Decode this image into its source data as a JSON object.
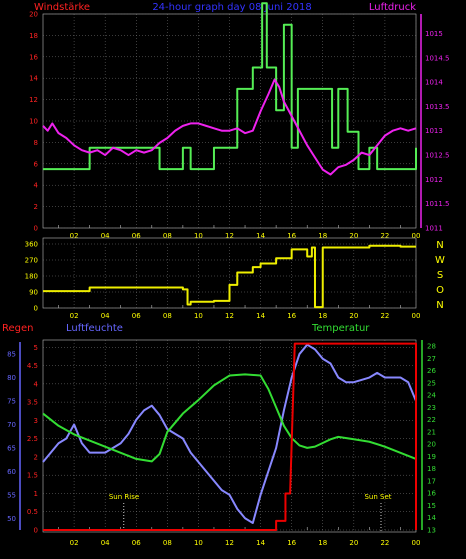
{
  "colors": {
    "background": "#000000",
    "grid": "#7a7a7a",
    "wind_speed": "#55ee55",
    "pressure": "#ee22ee",
    "wind_dir": "#eeee00",
    "humidity": "#8888ff",
    "temperature": "#33dd33",
    "rain": "#ee0000",
    "axis_red": "#ff2222",
    "axis_blue": "#6666ff",
    "axis_yellow": "#ffff00",
    "axis_magenta": "#ee22ee",
    "axis_green": "#33dd33",
    "title_blue": "#3333ff"
  },
  "header": {
    "left_label": "Windstärke",
    "title": "24-hour graph day 08 Juni 2018",
    "right_label": "Luftdruck"
  },
  "middle_header": {
    "compass": [
      "N",
      "W",
      "S",
      "O",
      "N"
    ]
  },
  "bottom_header": {
    "rain_label": "Regen",
    "humidity_label": "Luftfeuchte",
    "temperature_label": "Temperatur"
  },
  "chart_data": [
    {
      "type": "line",
      "panel": "top",
      "x_ticks": [
        "02",
        "04",
        "06",
        "08",
        "10",
        "12",
        "14",
        "16",
        "18",
        "20",
        "22",
        "00"
      ],
      "xlim": [
        0,
        24
      ],
      "left_axis": {
        "title": "Windstärke",
        "ylim": [
          0,
          20
        ],
        "ticks": [
          "0",
          "2",
          "4",
          "6",
          "8",
          "10",
          "12",
          "14",
          "16",
          "18",
          "20"
        ]
      },
      "right_axis": {
        "title": "Luftdruck",
        "ylim": [
          1011,
          1015.4
        ],
        "ticks": [
          "1011",
          "1011.5",
          "1012",
          "1012.5",
          "1013",
          "1013.5",
          "1014",
          "1014.5",
          "1015"
        ]
      },
      "series": [
        {
          "name": "Windstärke",
          "axis": "left",
          "step": true,
          "points": [
            [
              0,
              5.5
            ],
            [
              3,
              5.5
            ],
            [
              3,
              7.5
            ],
            [
              7.5,
              7.5
            ],
            [
              7.5,
              5.5
            ],
            [
              9,
              5.5
            ],
            [
              9,
              7.5
            ],
            [
              9.5,
              7.5
            ],
            [
              9.5,
              5.5
            ],
            [
              11,
              5.5
            ],
            [
              11,
              7.5
            ],
            [
              12.5,
              7.5
            ],
            [
              12.5,
              13
            ],
            [
              13.5,
              13
            ],
            [
              13.5,
              15
            ],
            [
              14.1,
              15
            ],
            [
              14.1,
              21
            ],
            [
              14.4,
              21
            ],
            [
              14.4,
              15
            ],
            [
              15,
              15
            ],
            [
              15,
              11
            ],
            [
              15.5,
              11
            ],
            [
              15.5,
              19
            ],
            [
              16,
              19
            ],
            [
              16,
              7.5
            ],
            [
              16.4,
              7.5
            ],
            [
              16.4,
              13
            ],
            [
              18.6,
              13
            ],
            [
              18.6,
              7.5
            ],
            [
              19,
              7.5
            ],
            [
              19,
              13
            ],
            [
              19.6,
              13
            ],
            [
              19.6,
              9
            ],
            [
              20.3,
              9
            ],
            [
              20.3,
              5.5
            ],
            [
              21,
              5.5
            ],
            [
              21,
              7.5
            ],
            [
              21.5,
              7.5
            ],
            [
              21.5,
              5.5
            ],
            [
              24,
              5.5
            ],
            [
              24,
              7.5
            ]
          ]
        },
        {
          "name": "Luftdruck",
          "axis": "right",
          "points": [
            [
              0,
              1013.1
            ],
            [
              0.3,
              1013.0
            ],
            [
              0.6,
              1013.15
            ],
            [
              1,
              1012.95
            ],
            [
              1.5,
              1012.85
            ],
            [
              2,
              1012.7
            ],
            [
              2.5,
              1012.6
            ],
            [
              3,
              1012.55
            ],
            [
              3.5,
              1012.6
            ],
            [
              4,
              1012.5
            ],
            [
              4.5,
              1012.65
            ],
            [
              5,
              1012.6
            ],
            [
              5.5,
              1012.5
            ],
            [
              6,
              1012.6
            ],
            [
              6.5,
              1012.55
            ],
            [
              7,
              1012.6
            ],
            [
              7.5,
              1012.75
            ],
            [
              8,
              1012.85
            ],
            [
              8.5,
              1013.0
            ],
            [
              9,
              1013.1
            ],
            [
              9.5,
              1013.15
            ],
            [
              10,
              1013.15
            ],
            [
              10.5,
              1013.1
            ],
            [
              11,
              1013.05
            ],
            [
              11.5,
              1013.0
            ],
            [
              12,
              1013.0
            ],
            [
              12.5,
              1013.05
            ],
            [
              13,
              1012.95
            ],
            [
              13.5,
              1013.0
            ],
            [
              14,
              1013.4
            ],
            [
              14.5,
              1013.75
            ],
            [
              14.9,
              1014.05
            ],
            [
              15.2,
              1013.9
            ],
            [
              15.5,
              1013.6
            ],
            [
              16,
              1013.3
            ],
            [
              16.5,
              1013.0
            ],
            [
              17,
              1012.7
            ],
            [
              17.5,
              1012.45
            ],
            [
              18,
              1012.2
            ],
            [
              18.5,
              1012.1
            ],
            [
              19,
              1012.25
            ],
            [
              19.5,
              1012.3
            ],
            [
              20,
              1012.4
            ],
            [
              20.5,
              1012.55
            ],
            [
              21,
              1012.5
            ],
            [
              21.5,
              1012.7
            ],
            [
              22,
              1012.9
            ],
            [
              22.5,
              1013.0
            ],
            [
              23,
              1013.05
            ],
            [
              23.5,
              1013.0
            ],
            [
              24,
              1013.05
            ]
          ]
        }
      ]
    },
    {
      "type": "line",
      "panel": "middle",
      "x_ticks": [
        "02",
        "04",
        "06",
        "08",
        "10",
        "12",
        "14",
        "16",
        "18",
        "20",
        "22",
        "00"
      ],
      "xlim": [
        0,
        24
      ],
      "left_axis": {
        "ylim": [
          0,
          360
        ],
        "ticks": [
          "0",
          "90",
          "180",
          "270",
          "360"
        ]
      },
      "series": [
        {
          "name": "Windrichtung",
          "axis": "left",
          "step": true,
          "points": [
            [
              0,
              95
            ],
            [
              3,
              95
            ],
            [
              3,
              115
            ],
            [
              9,
              115
            ],
            [
              9,
              105
            ],
            [
              9.3,
              105
            ],
            [
              9.3,
              20
            ],
            [
              9.5,
              20
            ],
            [
              9.5,
              35
            ],
            [
              11,
              35
            ],
            [
              11,
              40
            ],
            [
              12,
              40
            ],
            [
              12,
              130
            ],
            [
              12.5,
              130
            ],
            [
              12.5,
              200
            ],
            [
              13.5,
              200
            ],
            [
              13.5,
              230
            ],
            [
              14,
              230
            ],
            [
              14,
              250
            ],
            [
              15,
              250
            ],
            [
              15,
              280
            ],
            [
              16,
              280
            ],
            [
              16,
              330
            ],
            [
              17,
              330
            ],
            [
              17,
              290
            ],
            [
              17.3,
              290
            ],
            [
              17.3,
              340
            ],
            [
              17.5,
              340
            ],
            [
              17.5,
              5
            ],
            [
              18,
              5
            ],
            [
              18,
              340
            ],
            [
              18.3,
              340
            ],
            [
              18.3,
              340
            ],
            [
              19,
              340
            ],
            [
              19,
              340
            ],
            [
              21,
              340
            ],
            [
              21,
              350
            ],
            [
              23,
              350
            ],
            [
              23,
              345
            ],
            [
              24,
              345
            ]
          ]
        }
      ]
    },
    {
      "type": "line",
      "panel": "bottom",
      "x_ticks": [
        "02",
        "04",
        "06",
        "08",
        "10",
        "12",
        "14",
        "16",
        "18",
        "20",
        "22",
        "00"
      ],
      "xlim": [
        0,
        24
      ],
      "rain_axis": {
        "title": "Regen",
        "ylim": [
          0,
          5.2
        ],
        "ticks": [
          "0",
          "0.5",
          "1",
          "1.5",
          "2",
          "2.5",
          "3",
          "3.5",
          "4",
          "4.5",
          "5"
        ]
      },
      "humidity_axis": {
        "title": "Luftfeuchte",
        "ylim": [
          47.5,
          88
        ],
        "ticks": [
          "50",
          "55",
          "60",
          "65",
          "70",
          "75",
          "80",
          "85"
        ]
      },
      "temperature_axis": {
        "title": "Temperatur",
        "ylim": [
          13,
          28.5
        ],
        "ticks": [
          "13",
          "14",
          "15",
          "16",
          "17",
          "18",
          "19",
          "20",
          "21",
          "22",
          "23",
          "24",
          "25",
          "26",
          "27",
          "28"
        ]
      },
      "annotations": [
        "Sun Rise",
        "Sun Set"
      ],
      "series": [
        {
          "name": "Regen",
          "axis": "rain",
          "step": true,
          "points": [
            [
              0,
              0
            ],
            [
              15,
              0
            ],
            [
              15,
              0.25
            ],
            [
              15.6,
              0.25
            ],
            [
              15.6,
              1.0
            ],
            [
              15.9,
              1.0
            ],
            [
              16.2,
              5.1
            ],
            [
              24,
              5.1
            ],
            [
              24,
              0
            ]
          ]
        },
        {
          "name": "Luftfeuchte",
          "axis": "humidity",
          "points": [
            [
              0,
              62
            ],
            [
              0.5,
              64
            ],
            [
              1,
              66
            ],
            [
              1.5,
              67
            ],
            [
              2,
              70
            ],
            [
              2.5,
              66
            ],
            [
              3,
              64
            ],
            [
              4,
              64
            ],
            [
              5,
              66
            ],
            [
              5.5,
              68
            ],
            [
              6,
              71
            ],
            [
              6.5,
              73
            ],
            [
              7,
              74
            ],
            [
              7.5,
              72
            ],
            [
              8,
              69
            ],
            [
              9,
              67
            ],
            [
              9.5,
              64
            ],
            [
              10,
              62
            ],
            [
              10.5,
              60
            ],
            [
              11,
              58
            ],
            [
              11.5,
              56
            ],
            [
              12,
              55
            ],
            [
              12.5,
              52
            ],
            [
              13,
              50
            ],
            [
              13.5,
              49
            ],
            [
              14,
              55
            ],
            [
              14.5,
              60
            ],
            [
              15,
              65
            ],
            [
              15.5,
              73
            ],
            [
              16,
              80
            ],
            [
              16.5,
              85
            ],
            [
              17,
              87
            ],
            [
              17.5,
              86
            ],
            [
              18,
              84
            ],
            [
              18.5,
              83
            ],
            [
              19,
              80
            ],
            [
              19.5,
              79
            ],
            [
              20,
              79
            ],
            [
              21,
              80
            ],
            [
              21.5,
              81
            ],
            [
              22,
              80
            ],
            [
              23,
              80
            ],
            [
              23.5,
              79
            ],
            [
              24,
              75
            ]
          ]
        },
        {
          "name": "Temperatur",
          "axis": "temperature",
          "points": [
            [
              0,
              22.5
            ],
            [
              0.5,
              22
            ],
            [
              1,
              21.5
            ],
            [
              2,
              20.8
            ],
            [
              3,
              20.3
            ],
            [
              4,
              19.8
            ],
            [
              5,
              19.3
            ],
            [
              6,
              18.8
            ],
            [
              7,
              18.6
            ],
            [
              7.5,
              19.2
            ],
            [
              8,
              21.0
            ],
            [
              9,
              22.5
            ],
            [
              10,
              23.6
            ],
            [
              11,
              24.8
            ],
            [
              12,
              25.6
            ],
            [
              13,
              25.7
            ],
            [
              14,
              25.6
            ],
            [
              14.5,
              24.5
            ],
            [
              15,
              23.0
            ],
            [
              15.5,
              21.5
            ],
            [
              16,
              20.5
            ],
            [
              16.5,
              19.9
            ],
            [
              17,
              19.7
            ],
            [
              17.5,
              19.8
            ],
            [
              18,
              20.1
            ],
            [
              18.5,
              20.4
            ],
            [
              19,
              20.6
            ],
            [
              20,
              20.4
            ],
            [
              21,
              20.2
            ],
            [
              22,
              19.8
            ],
            [
              23,
              19.3
            ],
            [
              24,
              18.8
            ]
          ]
        }
      ]
    }
  ]
}
